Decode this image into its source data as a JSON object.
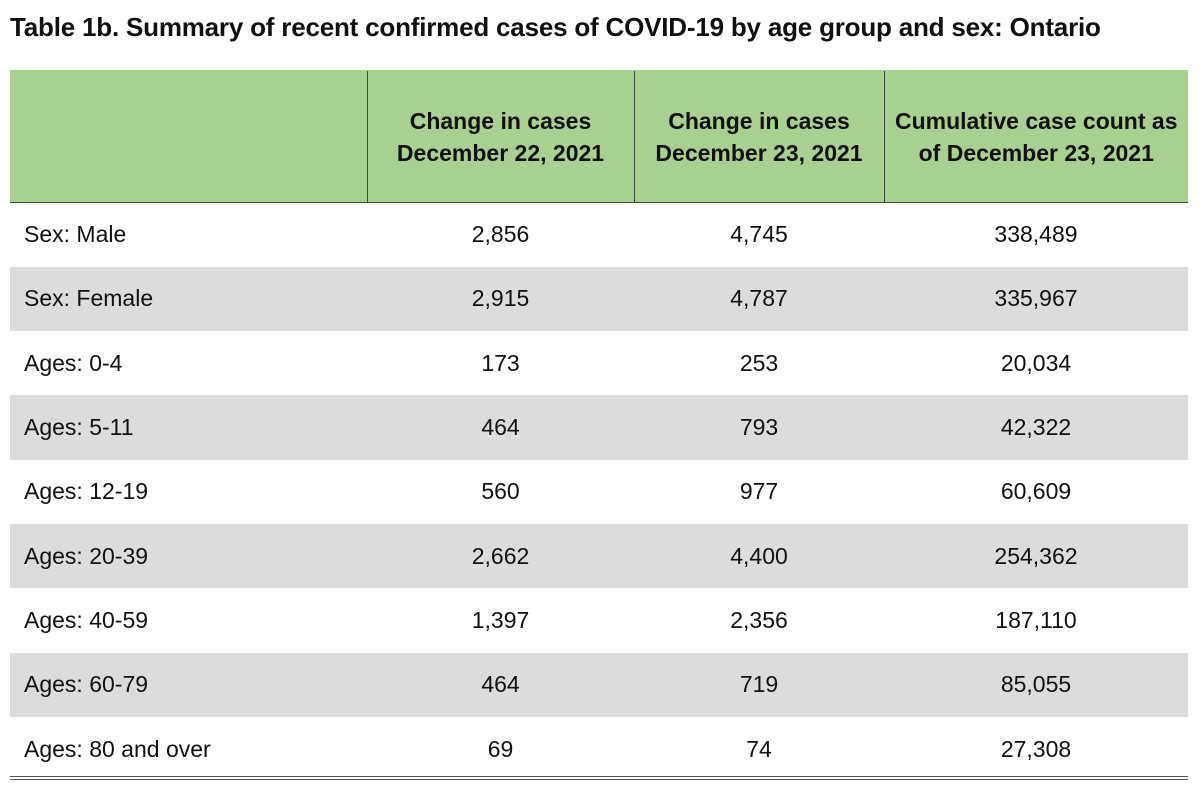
{
  "title": "Table 1b. Summary of recent confirmed cases of COVID-19 by age group and sex: Ontario",
  "table": {
    "headers": [
      "",
      "Change in cases December 22, 2021",
      "Change in cases December 23, 2021",
      "Cumulative case count as of December 23, 2021"
    ],
    "rows": [
      [
        "Sex: Male",
        "2,856",
        "4,745",
        "338,489"
      ],
      [
        "Sex: Female",
        "2,915",
        "4,787",
        "335,967"
      ],
      [
        "Ages: 0-4",
        "173",
        "253",
        "20,034"
      ],
      [
        "Ages: 5-11",
        "464",
        "793",
        "42,322"
      ],
      [
        "Ages: 12-19",
        "560",
        "977",
        "60,609"
      ],
      [
        "Ages: 20-39",
        "2,662",
        "4,400",
        "254,362"
      ],
      [
        "Ages: 40-59",
        "1,397",
        "2,356",
        "187,110"
      ],
      [
        "Ages: 60-79",
        "464",
        "719",
        "85,055"
      ],
      [
        "Ages: 80 and over",
        "69",
        "74",
        "27,308"
      ]
    ]
  },
  "colors": {
    "header_bg": "#a9d08e",
    "stripe_bg": "#dcdcdc",
    "text": "#111111"
  }
}
